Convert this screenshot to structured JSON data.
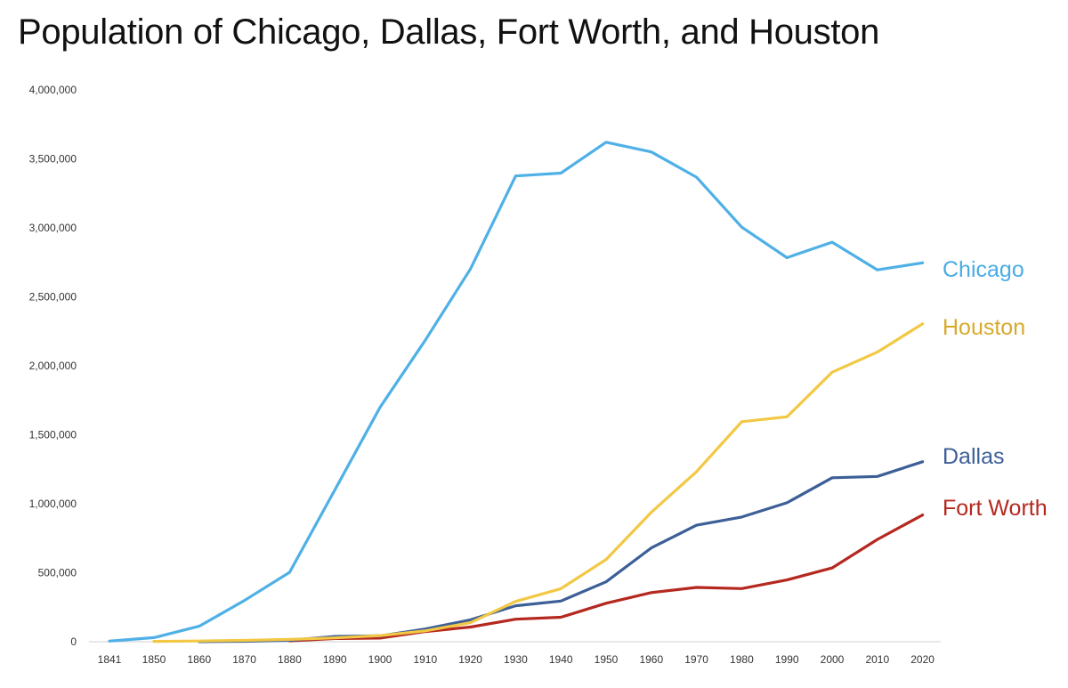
{
  "chart_data": {
    "type": "line",
    "title": "Population of Chicago, Dallas, Fort Worth, and Houston",
    "xlabel": "",
    "ylabel": "",
    "categories": [
      "1841",
      "1850",
      "1860",
      "1870",
      "1880",
      "1890",
      "1900",
      "1910",
      "1920",
      "1930",
      "1940",
      "1950",
      "1960",
      "1970",
      "1980",
      "1990",
      "2000",
      "2010",
      "2020"
    ],
    "ylim": [
      0,
      4000000
    ],
    "yticks": [
      0,
      500000,
      1000000,
      1500000,
      2000000,
      2500000,
      3000000,
      3500000,
      4000000
    ],
    "ytick_labels": [
      "0",
      "500,000",
      "1,000,000",
      "1,500,000",
      "2,000,000",
      "2,500,000",
      "3,000,000",
      "3,500,000",
      "4,000,000"
    ],
    "grid": false,
    "legend": "direct labels at right end of lines",
    "series": [
      {
        "name": "Chicago",
        "color": "#4fb0e6",
        "label_color": "#49ace4",
        "values": [
          4470,
          29963,
          112172,
          298977,
          503185,
          1099850,
          1698575,
          2185283,
          2701705,
          3376438,
          3396808,
          3620962,
          3550404,
          3366957,
          3005072,
          2783726,
          2896016,
          2695598,
          2746388
        ]
      },
      {
        "name": "Houston",
        "color": "#f2c844",
        "label_color": "#d7aa2c",
        "values": [
          null,
          2396,
          4845,
          9382,
          16513,
          27557,
          44633,
          78800,
          138276,
          292352,
          384514,
          596163,
          938219,
          1232802,
          1595138,
          1630553,
          1953631,
          2099451,
          2304580
        ]
      },
      {
        "name": "Dallas",
        "color": "#3d5f98",
        "label_color": "#3d5f98",
        "values": [
          null,
          null,
          678,
          3000,
          10358,
          38067,
          42638,
          92104,
          158976,
          260475,
          294734,
          434462,
          679684,
          844401,
          904078,
          1006877,
          1188580,
          1197816,
          1304379
        ]
      },
      {
        "name": "Fort Worth",
        "color": "#b5281f",
        "label_color": "#b5281f",
        "values": [
          null,
          null,
          null,
          null,
          6663,
          23076,
          26688,
          73312,
          106482,
          163447,
          177662,
          278778,
          356268,
          393476,
          385164,
          447619,
          534694,
          741206,
          918915
        ]
      }
    ]
  }
}
